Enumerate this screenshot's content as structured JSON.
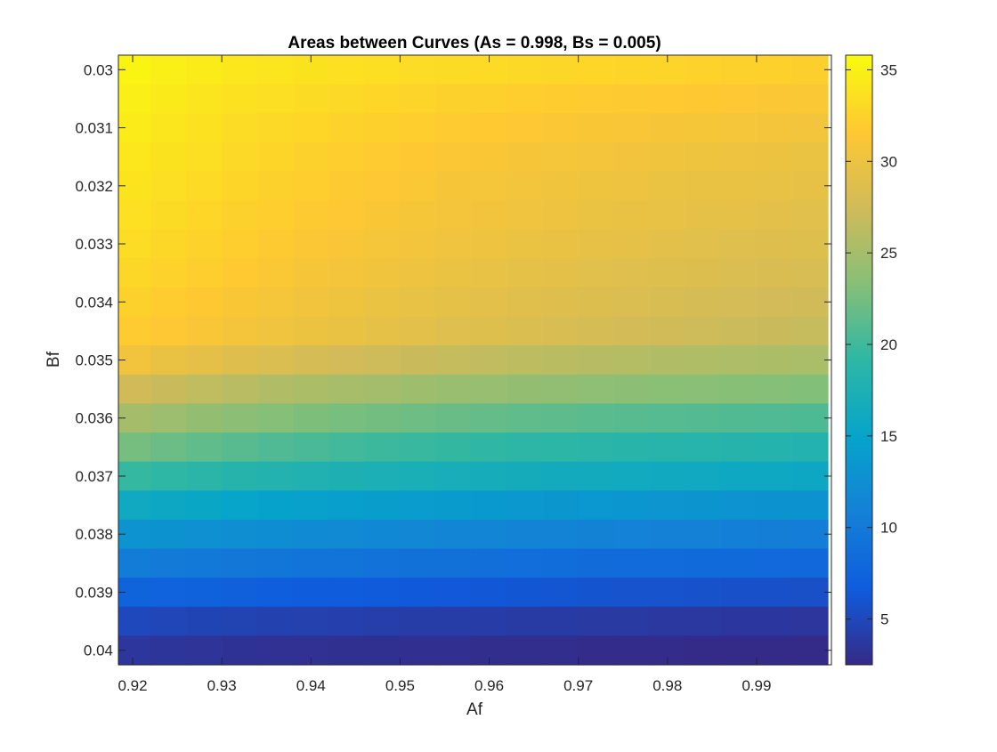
{
  "chart_data": {
    "type": "heatmap",
    "title": "Areas between Curves (As = 0.998, Bs = 0.005)",
    "xlabel": "Af",
    "ylabel": "Bf",
    "x_ticks": [
      "0.92",
      "0.93",
      "0.94",
      "0.95",
      "0.96",
      "0.97",
      "0.98",
      "0.99"
    ],
    "y_ticks": [
      "0.03",
      "0.031",
      "0.032",
      "0.033",
      "0.034",
      "0.035",
      "0.036",
      "0.037",
      "0.038",
      "0.039",
      "0.04"
    ],
    "colorbar_ticks": [
      "5",
      "10",
      "15",
      "20",
      "25",
      "30",
      "35"
    ],
    "x_range": [
      0.9184,
      0.9984
    ],
    "y_range": [
      0.02975,
      0.04025
    ],
    "x_centers": [
      0.92,
      0.924,
      0.928,
      0.932,
      0.936,
      0.94,
      0.944,
      0.948,
      0.952,
      0.956,
      0.96,
      0.964,
      0.968,
      0.972,
      0.976,
      0.98,
      0.984,
      0.988,
      0.992,
      0.996
    ],
    "y_centers": [
      0.03,
      0.0305,
      0.031,
      0.0315,
      0.032,
      0.0325,
      0.033,
      0.0335,
      0.034,
      0.0345,
      0.035,
      0.0355,
      0.036,
      0.0365,
      0.037,
      0.0375,
      0.038,
      0.0385,
      0.039,
      0.0395,
      0.04
    ],
    "color_range": [
      2.5,
      35.8
    ],
    "colormap": "parula",
    "row_values": [
      [
        35.2,
        34.8,
        34.5,
        34.2,
        34.0,
        33.8,
        33.6,
        33.4,
        33.3,
        33.2,
        33.1,
        33.0,
        32.9,
        32.8,
        32.7,
        32.6,
        32.5,
        32.4,
        32.3,
        32.2
      ],
      [
        34.8,
        34.4,
        34.0,
        33.7,
        33.4,
        33.2,
        33.0,
        32.8,
        32.6,
        32.4,
        32.3,
        32.1,
        32.0,
        31.9,
        31.8,
        31.7,
        31.6,
        31.5,
        31.4,
        31.3
      ],
      [
        34.5,
        34.1,
        33.7,
        33.3,
        33.0,
        32.8,
        32.5,
        32.3,
        32.1,
        31.9,
        31.7,
        31.5,
        31.4,
        31.2,
        31.1,
        31.0,
        30.9,
        30.8,
        30.7,
        30.6
      ],
      [
        34.2,
        33.8,
        33.4,
        33.0,
        32.7,
        32.4,
        32.1,
        31.9,
        31.6,
        31.4,
        31.2,
        31.0,
        30.8,
        30.7,
        30.5,
        30.4,
        30.2,
        30.1,
        30.0,
        29.9
      ],
      [
        33.9,
        33.5,
        33.1,
        32.7,
        32.4,
        32.1,
        31.8,
        31.5,
        31.3,
        31.0,
        30.8,
        30.6,
        30.4,
        30.2,
        30.1,
        29.9,
        29.8,
        29.7,
        29.6,
        29.5
      ],
      [
        33.6,
        33.2,
        32.8,
        32.4,
        32.1,
        31.8,
        31.5,
        31.2,
        30.9,
        30.7,
        30.5,
        30.3,
        30.1,
        29.9,
        29.7,
        29.6,
        29.4,
        29.3,
        29.1,
        29.0
      ],
      [
        33.3,
        32.9,
        32.5,
        32.1,
        31.8,
        31.4,
        31.1,
        30.8,
        30.6,
        30.3,
        30.1,
        29.9,
        29.7,
        29.5,
        29.3,
        29.1,
        29.0,
        28.8,
        28.7,
        28.6
      ],
      [
        32.9,
        32.5,
        32.1,
        31.7,
        31.3,
        31.0,
        30.7,
        30.4,
        30.1,
        29.9,
        29.6,
        29.4,
        29.2,
        29.0,
        28.8,
        28.6,
        28.5,
        28.3,
        28.2,
        28.0
      ],
      [
        32.4,
        32.0,
        31.6,
        31.2,
        30.8,
        30.5,
        30.2,
        29.9,
        29.6,
        29.3,
        29.1,
        28.9,
        28.7,
        28.5,
        28.3,
        28.1,
        27.9,
        27.8,
        27.6,
        27.5
      ],
      [
        31.9,
        31.5,
        31.1,
        30.7,
        30.3,
        30.0,
        29.7,
        29.4,
        29.1,
        28.8,
        28.6,
        28.4,
        28.1,
        27.9,
        27.7,
        27.5,
        27.3,
        27.2,
        27.0,
        26.9
      ],
      [
        30.5,
        29.8,
        29.2,
        28.7,
        28.3,
        27.9,
        27.6,
        27.3,
        27.0,
        26.8,
        26.6,
        26.4,
        26.2,
        26.0,
        25.9,
        25.7,
        25.6,
        25.5,
        25.4,
        25.3
      ],
      [
        27.5,
        27.0,
        26.5,
        26.1,
        25.7,
        25.4,
        25.1,
        24.9,
        24.6,
        24.4,
        24.2,
        24.0,
        23.9,
        23.7,
        23.6,
        23.5,
        23.4,
        23.3,
        23.2,
        23.1
      ],
      [
        25.0,
        24.5,
        24.0,
        23.6,
        23.2,
        22.9,
        22.6,
        22.4,
        22.1,
        21.9,
        21.7,
        21.5,
        21.4,
        21.2,
        21.1,
        21.0,
        20.9,
        20.8,
        20.7,
        20.6
      ],
      [
        22.5,
        22.0,
        21.5,
        21.1,
        20.7,
        20.4,
        20.1,
        19.8,
        19.6,
        19.4,
        19.2,
        19.0,
        18.9,
        18.7,
        18.6,
        18.5,
        18.4,
        18.3,
        18.2,
        18.1
      ],
      [
        19.5,
        19.1,
        18.7,
        18.3,
        18.0,
        17.8,
        17.5,
        17.3,
        17.1,
        16.9,
        16.7,
        16.6,
        16.4,
        16.3,
        16.2,
        16.1,
        16.0,
        15.9,
        15.8,
        15.7
      ],
      [
        16.0,
        15.7,
        15.4,
        15.1,
        14.8,
        14.6,
        14.4,
        14.2,
        14.0,
        13.9,
        13.7,
        13.6,
        13.5,
        13.4,
        13.3,
        13.2,
        13.1,
        13.0,
        12.9,
        12.8
      ],
      [
        13.0,
        12.8,
        12.6,
        12.4,
        12.2,
        12.0,
        11.8,
        11.7,
        11.5,
        11.4,
        11.3,
        11.2,
        11.1,
        11.0,
        10.9,
        10.8,
        10.7,
        10.6,
        10.5,
        10.4
      ],
      [
        10.3,
        10.1,
        9.9,
        9.7,
        9.5,
        9.4,
        9.2,
        9.1,
        9.0,
        8.9,
        8.8,
        8.7,
        8.6,
        8.5,
        8.4,
        8.3,
        8.2,
        8.2,
        8.1,
        8.0
      ],
      [
        7.6,
        7.4,
        7.2,
        7.1,
        6.9,
        6.8,
        6.7,
        6.6,
        6.5,
        6.4,
        6.3,
        6.2,
        6.1,
        6.0,
        5.9,
        5.9,
        5.8,
        5.7,
        5.7,
        5.6
      ],
      [
        5.0,
        4.8,
        4.7,
        4.6,
        4.5,
        4.4,
        4.3,
        4.2,
        4.1,
        4.1,
        4.0,
        3.9,
        3.9,
        3.8,
        3.8,
        3.7,
        3.7,
        3.6,
        3.6,
        3.5
      ],
      [
        3.5,
        3.4,
        3.3,
        3.2,
        3.1,
        3.1,
        3.0,
        3.0,
        2.9,
        2.9,
        2.8,
        2.8,
        2.8,
        2.7,
        2.7,
        2.7,
        2.6,
        2.6,
        2.6,
        2.6
      ]
    ],
    "grid": false,
    "colorbar_position": "right"
  }
}
